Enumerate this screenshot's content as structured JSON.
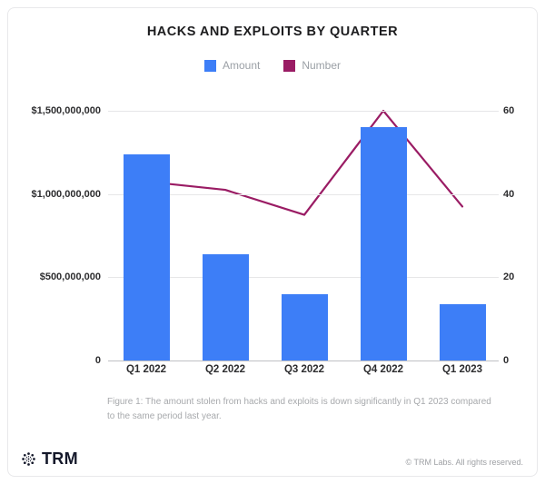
{
  "chart_data": {
    "type": "bar",
    "subtype": "bar+line combo, dual axis",
    "title": "HACKS AND EXPLOITS BY QUARTER",
    "categories": [
      "Q1 2022",
      "Q2 2022",
      "Q3 2022",
      "Q4 2022",
      "Q1 2023"
    ],
    "series": [
      {
        "name": "Amount",
        "type": "bar",
        "axis": "left",
        "color": "#3d7ef7",
        "values": [
          1240000000,
          640000000,
          400000000,
          1400000000,
          340000000
        ]
      },
      {
        "name": "Number",
        "type": "line",
        "axis": "right",
        "color": "#9a1c64",
        "values": [
          43,
          41,
          35,
          60,
          37
        ]
      }
    ],
    "left_axis": {
      "label": "",
      "max": 1500000000,
      "tick_values": [
        1500000000,
        1000000000,
        500000000,
        0
      ],
      "ticks": [
        "$1,500,000,000",
        "$1,000,000,000",
        "$500,000,000",
        "0"
      ]
    },
    "right_axis": {
      "label": "",
      "max": 60,
      "tick_values": [
        60,
        40,
        20,
        0
      ],
      "ticks": [
        "60",
        "40",
        "20",
        "0"
      ]
    },
    "grid": true,
    "legend_position": "top"
  },
  "caption": "Figure 1: The amount stolen from hacks and exploits is down significantly in Q1 2023 compared to the same period last year.",
  "footer": {
    "brand": "TRM",
    "copyright": "© TRM Labs. All rights reserved."
  }
}
